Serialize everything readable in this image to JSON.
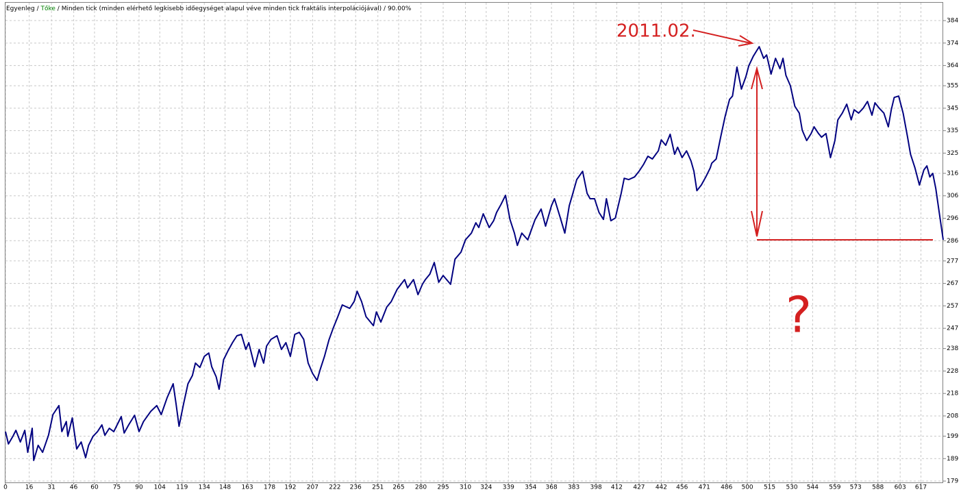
{
  "chart_data": {
    "type": "line",
    "legend": {
      "balance": "Egyenleg",
      "equity": "Tőke",
      "equity_color": "#008000",
      "separator": " / ",
      "model": "Minden tick (minden elérhető legkisebb időegységet alapul véve minden tick fraktális interpolációjával)",
      "quality": "90.00%"
    },
    "annotations": {
      "date": "2011.02.",
      "question": "?"
    },
    "x": [
      0,
      2,
      5,
      7,
      10,
      13,
      15,
      18,
      19,
      22,
      25,
      29,
      32,
      36,
      38,
      41,
      42,
      45,
      48,
      51,
      54,
      56,
      59,
      62,
      65,
      67,
      70,
      73,
      78,
      80,
      83,
      87,
      90,
      93,
      98,
      102,
      105,
      109,
      113,
      115,
      117,
      120,
      123,
      126,
      128,
      131,
      134,
      137,
      139,
      142,
      144,
      147,
      150,
      153,
      156,
      159,
      162,
      164,
      168,
      171,
      174,
      176,
      179,
      183,
      186,
      189,
      192,
      195,
      198,
      201,
      204,
      207,
      210,
      212,
      215,
      218,
      221,
      224,
      227,
      232,
      235,
      237,
      240,
      243,
      246,
      248,
      250,
      253,
      257,
      260,
      264,
      269,
      271,
      275,
      278,
      281,
      283,
      286,
      289,
      292,
      295,
      300,
      303,
      307,
      310,
      314,
      317,
      319,
      322,
      326,
      329,
      331,
      334,
      337,
      340,
      343,
      345,
      348,
      352,
      355,
      357,
      361,
      364,
      368,
      370,
      374,
      377,
      380,
      382,
      385,
      389,
      392,
      394,
      397,
      400,
      403,
      405,
      408,
      411,
      415,
      417,
      420,
      424,
      427,
      430,
      433,
      436,
      440,
      442,
      445,
      448,
      451,
      453,
      456,
      459,
      462,
      464,
      466,
      469,
      472,
      475,
      476,
      479,
      482,
      485,
      488,
      490,
      493,
      496,
      499,
      501,
      504,
      506,
      508,
      511,
      513,
      516,
      519,
      522,
      524,
      526,
      529,
      532,
      535,
      537,
      540,
      543,
      545,
      548,
      550,
      553,
      556,
      559,
      561,
      564,
      567,
      570,
      572,
      575,
      578,
      581,
      584,
      586,
      589,
      592,
      595,
      597,
      599,
      602,
      605,
      608,
      610,
      613,
      616,
      619,
      621,
      623,
      625,
      627,
      629,
      632
    ],
    "series": [
      {
        "name": "Egyenleg",
        "color": "#000080",
        "values": [
          201.0,
          195.5,
          198.9,
          201.6,
          196.4,
          201.6,
          191.8,
          202.5,
          188.2,
          194.9,
          191.8,
          199.4,
          208.6,
          212.6,
          201.0,
          205.5,
          198.9,
          207.1,
          193.3,
          196.4,
          189.4,
          194.9,
          198.9,
          201.0,
          204.0,
          199.4,
          202.5,
          201.0,
          207.7,
          200.4,
          204.0,
          208.3,
          201.0,
          205.5,
          210.1,
          212.6,
          208.6,
          216.2,
          222.3,
          213.2,
          203.4,
          213.2,
          222.3,
          226.0,
          231.5,
          229.6,
          234.5,
          236.0,
          229.9,
          225.4,
          219.9,
          233.0,
          237.0,
          240.6,
          243.7,
          244.3,
          237.6,
          240.6,
          229.9,
          237.6,
          231.5,
          239.1,
          242.1,
          243.7,
          237.6,
          240.6,
          234.5,
          244.3,
          245.2,
          242.1,
          231.5,
          226.9,
          223.8,
          228.4,
          234.5,
          241.8,
          247.3,
          252.2,
          257.4,
          255.9,
          258.9,
          263.5,
          258.9,
          252.2,
          249.8,
          248.2,
          254.3,
          249.8,
          256.5,
          258.9,
          264.4,
          268.7,
          265.0,
          268.7,
          262.0,
          266.6,
          268.7,
          271.1,
          276.3,
          267.5,
          270.5,
          266.6,
          277.8,
          280.9,
          286.4,
          289.4,
          294.0,
          291.9,
          298.0,
          291.9,
          294.9,
          298.6,
          302.2,
          306.2,
          295.5,
          289.4,
          283.9,
          289.4,
          286.4,
          291.9,
          295.5,
          300.1,
          292.5,
          301.6,
          304.7,
          296.1,
          289.4,
          301.6,
          306.2,
          313.2,
          316.9,
          307.1,
          304.7,
          304.7,
          298.6,
          295.5,
          304.7,
          294.9,
          296.1,
          307.1,
          313.8,
          313.2,
          314.4,
          316.9,
          319.9,
          323.6,
          322.4,
          326.0,
          330.9,
          328.5,
          333.4,
          324.5,
          327.6,
          323.0,
          326.0,
          321.5,
          316.9,
          308.3,
          310.8,
          314.4,
          318.4,
          320.5,
          322.4,
          332.1,
          341.3,
          348.9,
          350.4,
          363.3,
          353.5,
          359.0,
          363.9,
          368.1,
          370.3,
          372.4,
          367.2,
          368.7,
          360.2,
          367.2,
          362.6,
          367.2,
          359.6,
          355.0,
          345.9,
          342.8,
          335.2,
          330.6,
          333.7,
          336.7,
          333.7,
          332.1,
          333.7,
          323.0,
          330.6,
          339.8,
          342.8,
          346.8,
          339.8,
          344.3,
          342.8,
          344.9,
          348.0,
          341.9,
          347.4,
          344.9,
          342.8,
          336.7,
          344.3,
          349.8,
          350.4,
          342.8,
          332.1,
          324.5,
          318.4,
          310.8,
          317.5,
          319.3,
          314.4,
          316.0,
          309.2,
          300.1,
          286.4
        ]
      }
    ],
    "xlim": [
      0,
      632
    ],
    "ylim": [
      178.4,
      388.9
    ],
    "xticks": [
      0,
      16,
      31,
      46,
      60,
      75,
      90,
      104,
      119,
      134,
      148,
      163,
      178,
      192,
      207,
      222,
      236,
      251,
      265,
      280,
      295,
      310,
      324,
      339,
      354,
      368,
      383,
      398,
      412,
      427,
      442,
      456,
      471,
      486,
      500,
      515,
      530,
      544,
      559,
      573,
      588,
      603,
      617
    ],
    "yticks": [
      179,
      189,
      199,
      208,
      218,
      228,
      238,
      247,
      257,
      267,
      277,
      286,
      296,
      306,
      316,
      325,
      335,
      345,
      355,
      364,
      374,
      384
    ],
    "grid": true
  }
}
